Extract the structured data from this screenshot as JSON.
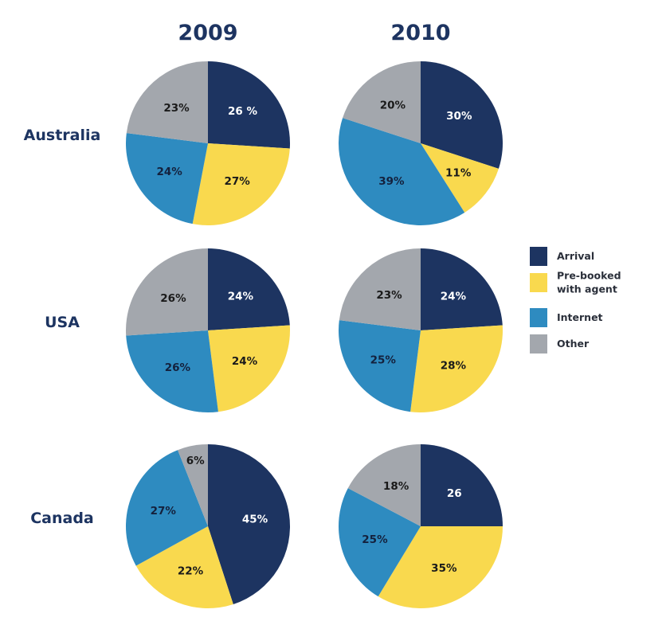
{
  "chart_data": {
    "type": "pie",
    "title": "",
    "years": [
      "2009",
      "2010"
    ],
    "countries": [
      "Australia",
      "USA",
      "Canada"
    ],
    "legend": {
      "placement": "right",
      "entries": [
        {
          "name": "Arrival",
          "lines": [
            "Arrival"
          ],
          "color": "#1d3461"
        },
        {
          "name": "Pre-booked with agent",
          "lines": [
            "Pre-booked",
            "with agent"
          ],
          "color": "#f9d94e"
        },
        {
          "name": "Internet",
          "lines": [
            "Internet"
          ],
          "color": "#2e8bc0"
        },
        {
          "name": "Other",
          "lines": [
            "Other"
          ],
          "color": "#a3a7ad"
        }
      ]
    },
    "pies": [
      {
        "country": "Australia",
        "year": "2009",
        "values": [
          26,
          27,
          24,
          23
        ],
        "labels": [
          "26 %",
          "27%",
          "24%",
          "23%"
        ]
      },
      {
        "country": "Australia",
        "year": "2010",
        "values": [
          30,
          11,
          39,
          20
        ],
        "labels": [
          "30%",
          "11%",
          "39%",
          "20%"
        ]
      },
      {
        "country": "USA",
        "year": "2009",
        "values": [
          24,
          24,
          26,
          26
        ],
        "labels": [
          "24%",
          "24%",
          "26%",
          "26%"
        ]
      },
      {
        "country": "USA",
        "year": "2010",
        "values": [
          24,
          28,
          25,
          23
        ],
        "labels": [
          "24%",
          "28%",
          "25%",
          "23%"
        ]
      },
      {
        "country": "Canada",
        "year": "2009",
        "values": [
          45,
          22,
          27,
          6
        ],
        "labels": [
          "45%",
          "22%",
          "27%",
          "6%"
        ]
      },
      {
        "country": "Canada",
        "year": "2010",
        "values": [
          26,
          35,
          25,
          18
        ],
        "labels": [
          "26",
          "35%",
          "25%",
          "18%"
        ]
      }
    ]
  }
}
